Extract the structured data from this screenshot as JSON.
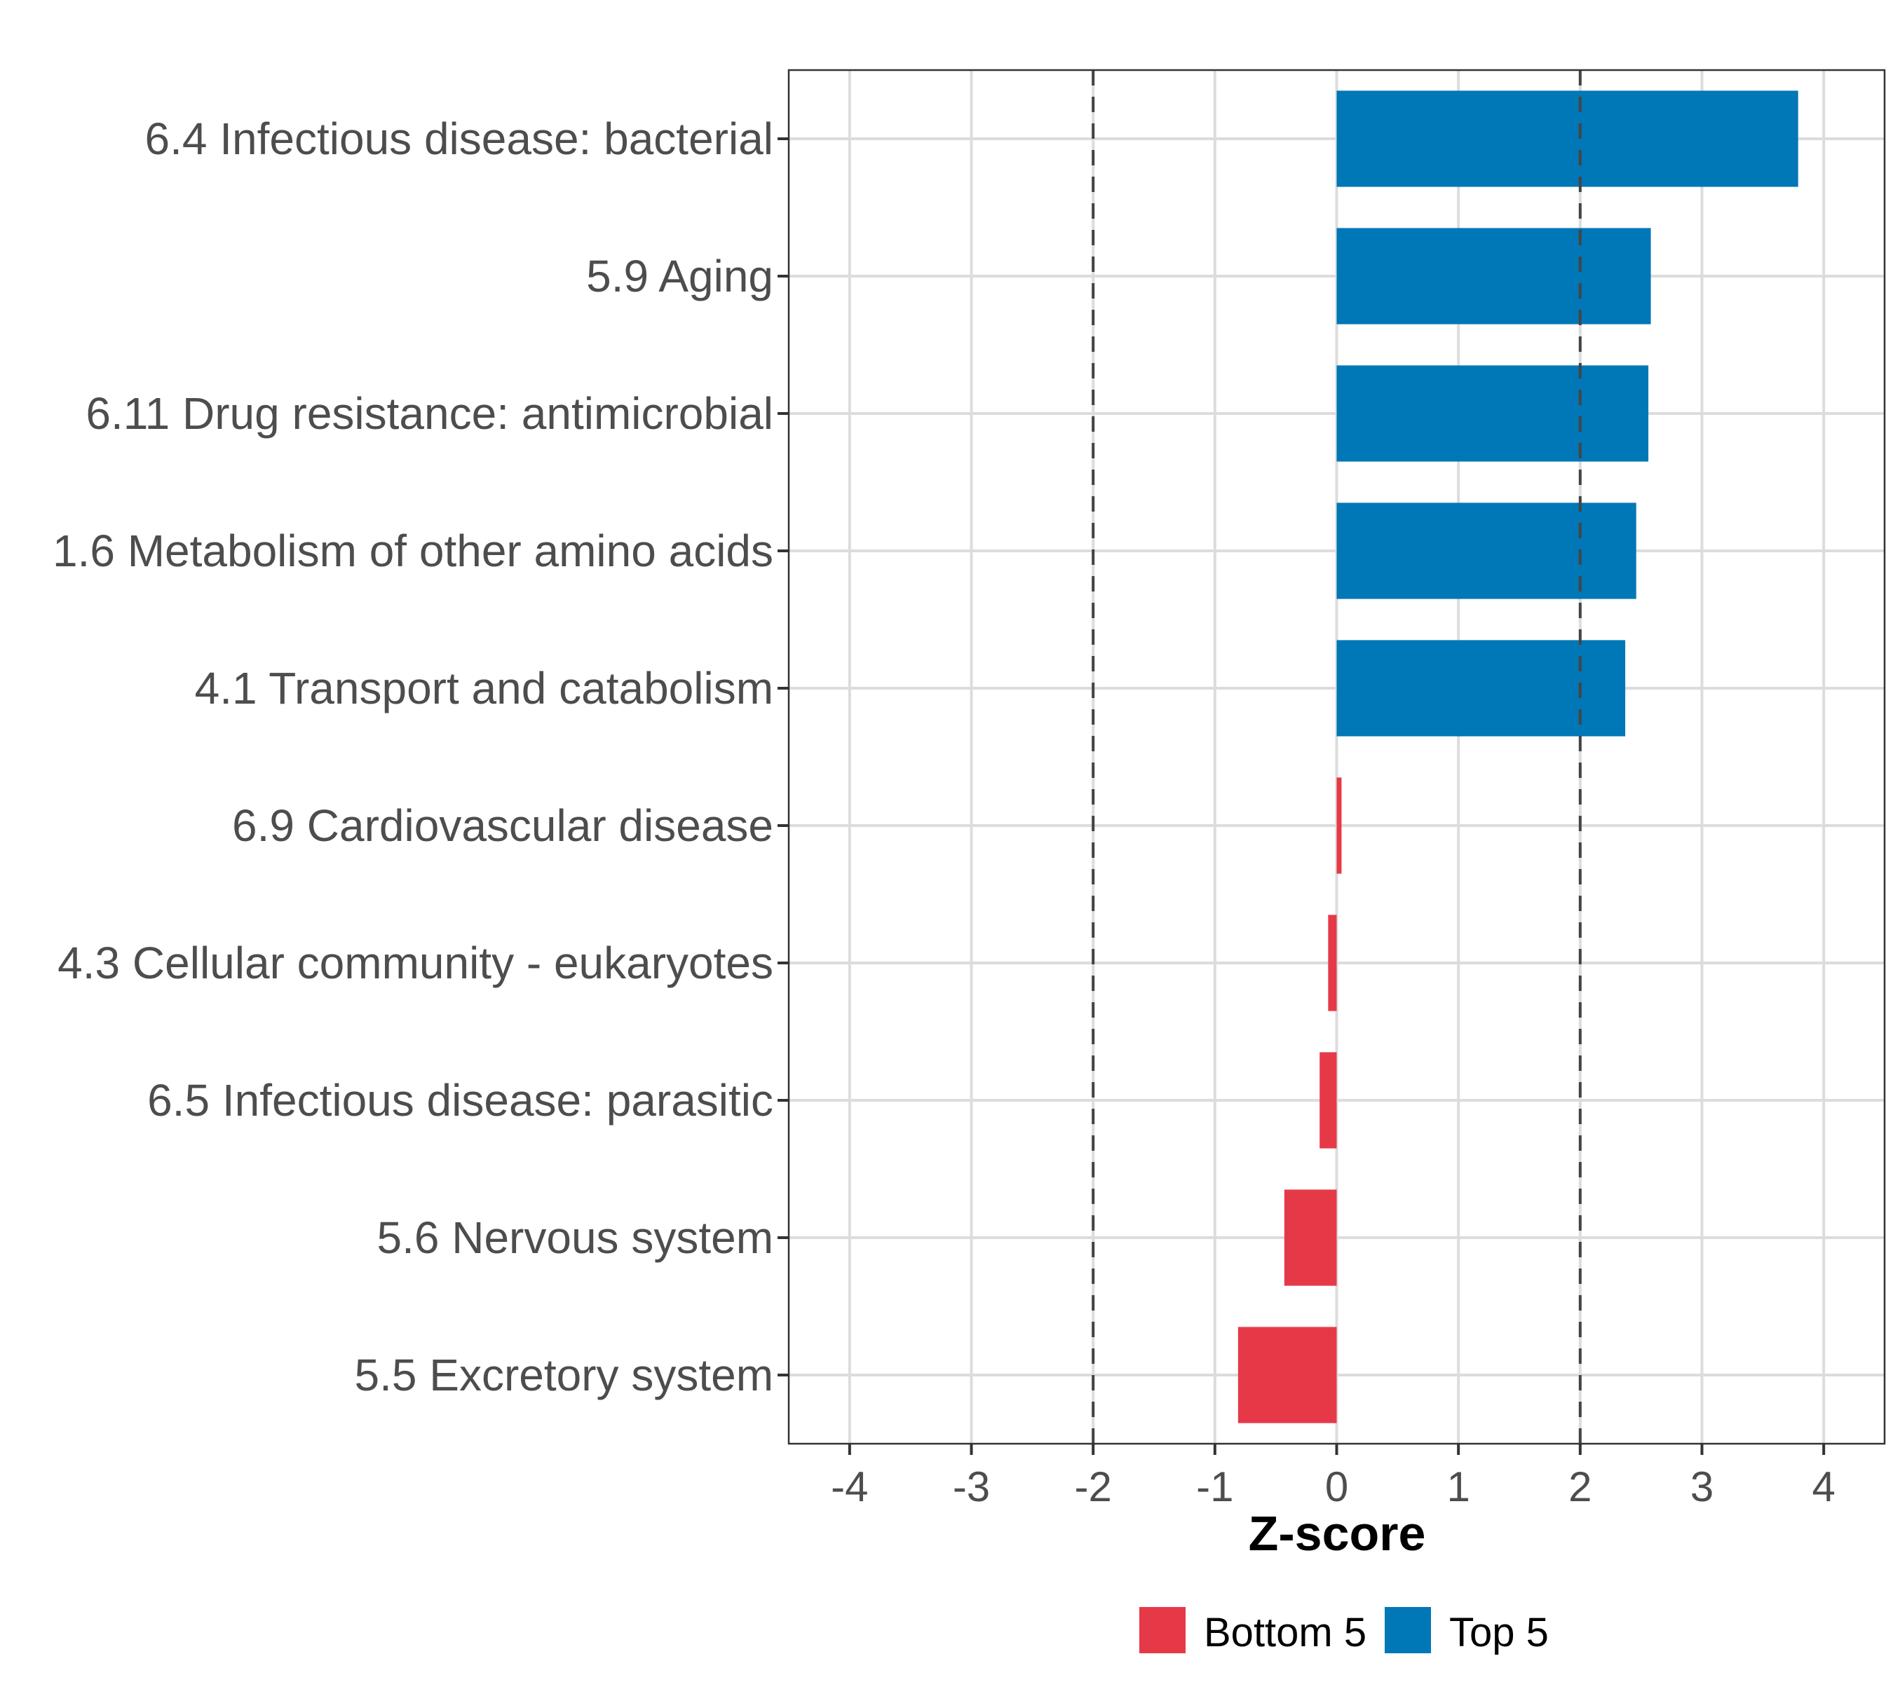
{
  "chart_data": {
    "type": "bar",
    "orientation": "horizontal",
    "title": "",
    "xlabel": "Z-score",
    "ylabel": "",
    "xlim": [
      -4.5,
      4.5
    ],
    "x_ticks": [
      -4,
      -3,
      -2,
      -1,
      0,
      1,
      2,
      3,
      4
    ],
    "x_tick_labels": [
      "-4",
      "-3",
      "-2",
      "-1",
      "0",
      "1",
      "2",
      "3",
      "4"
    ],
    "reference_lines": [
      -2,
      2
    ],
    "grid": true,
    "legend_position": "bottom",
    "colors": {
      "Bottom 5": "#E63948",
      "Top 5": "#0077B6"
    },
    "legend": [
      {
        "label": "Bottom 5",
        "color": "#E63948"
      },
      {
        "label": "Top 5",
        "color": "#0077B6"
      }
    ],
    "categories": [
      "6.4 Infectious disease: bacterial",
      "5.9 Aging",
      "6.11 Drug resistance: antimicrobial",
      "1.6 Metabolism of other amino acids",
      "4.1 Transport and catabolism",
      "6.9 Cardiovascular disease",
      "4.3 Cellular community - eukaryotes",
      "6.5 Infectious disease: parasitic",
      "5.6 Nervous system",
      "5.5 Excretory system"
    ],
    "values": [
      3.79,
      2.58,
      2.56,
      2.46,
      2.37,
      0.04,
      -0.07,
      -0.14,
      -0.43,
      -0.81
    ],
    "groups": [
      "Top 5",
      "Top 5",
      "Top 5",
      "Top 5",
      "Top 5",
      "Bottom 5",
      "Bottom 5",
      "Bottom 5",
      "Bottom 5",
      "Bottom 5"
    ]
  }
}
